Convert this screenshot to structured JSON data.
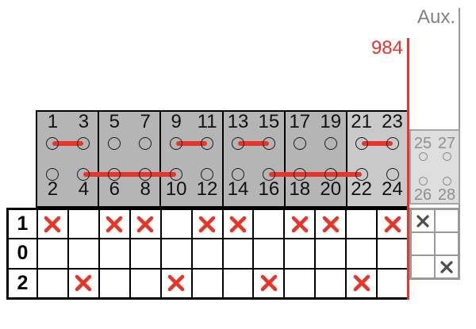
{
  "texts": {
    "aux_label": "Aux.",
    "wire_number": "984"
  },
  "colors": {
    "red": "#e8352a",
    "panel_bg": "#b5b5b5",
    "panel_bg_light": "#c9c9c9",
    "aux_bg": "#dedede",
    "aux_fg": "#8f8f8f",
    "aux_x": "#4d4d4d",
    "line_gray": "#9a9a9a"
  },
  "terminal_panel": {
    "blocks": [
      {
        "top": [
          "1",
          "3"
        ],
        "bottom": [
          "2",
          "4"
        ],
        "shade": "normal"
      },
      {
        "top": [
          "5",
          "7"
        ],
        "bottom": [
          "6",
          "8"
        ],
        "shade": "normal"
      },
      {
        "top": [
          "9",
          "11"
        ],
        "bottom": [
          "10",
          "12"
        ],
        "shade": "normal"
      },
      {
        "top": [
          "13",
          "15"
        ],
        "bottom": [
          "14",
          "16"
        ],
        "shade": "normal"
      },
      {
        "top": [
          "17",
          "19"
        ],
        "bottom": [
          "18",
          "20"
        ],
        "shade": "normal"
      },
      {
        "top": [
          "21",
          "23"
        ],
        "bottom": [
          "22",
          "24"
        ],
        "shade": "light"
      }
    ],
    "top_links": [
      [
        1,
        3
      ],
      [
        9,
        11
      ],
      [
        13,
        15
      ],
      [
        21,
        23
      ]
    ],
    "bottom_links": [
      [
        4,
        10
      ],
      [
        16,
        22
      ]
    ]
  },
  "aux_terminals": {
    "top": [
      "25",
      "27"
    ],
    "bottom": [
      "26",
      "28"
    ]
  },
  "switch_matrix": {
    "row_labels": [
      "1",
      "0",
      "2"
    ],
    "marks": [
      [
        1,
        0,
        1,
        1,
        0,
        1,
        1,
        0,
        1,
        1,
        0,
        1
      ],
      [
        0,
        0,
        0,
        0,
        0,
        0,
        0,
        0,
        0,
        0,
        0,
        0
      ],
      [
        0,
        1,
        0,
        0,
        1,
        0,
        0,
        1,
        0,
        0,
        1,
        0
      ]
    ]
  },
  "aux_matrix": {
    "marks": [
      [
        1,
        0
      ],
      [
        0,
        0
      ],
      [
        0,
        1
      ]
    ]
  }
}
